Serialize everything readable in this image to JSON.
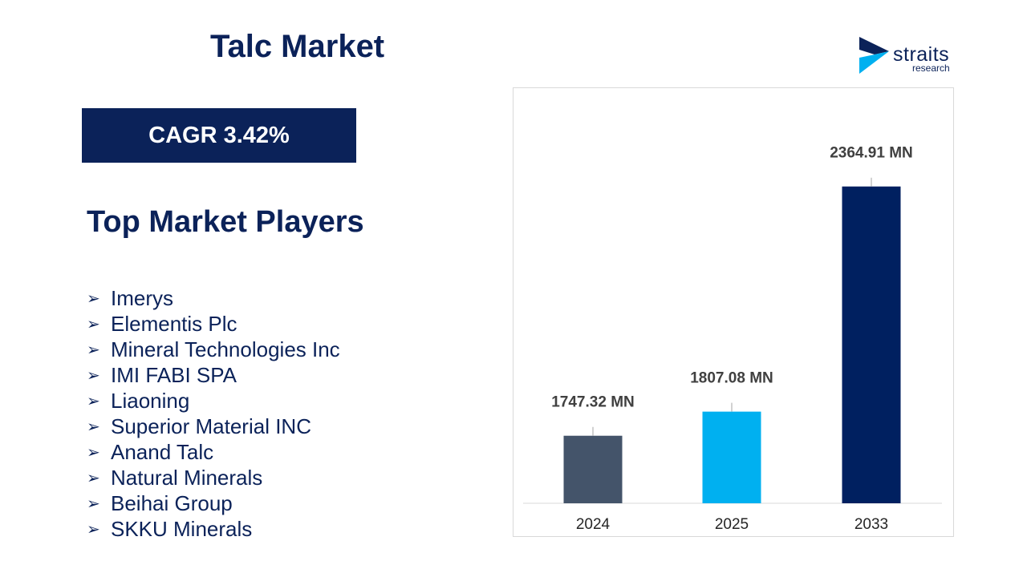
{
  "title": "Talc Market",
  "cagr": "CAGR 3.42%",
  "players_heading": "Top Market Players",
  "bullet_icon": "arrow-bullet-icon",
  "players": [
    "Imerys",
    "Elementis Plc",
    "Mineral Technologies Inc",
    "IMI FABI SPA",
    "Liaoning",
    "Superior Material INC",
    "Anand Talc",
    "Natural Minerals",
    "Beihai Group",
    "SKKU Minerals"
  ],
  "logo": {
    "name": "straits",
    "sub": "research",
    "icon": "straits-logo-icon"
  },
  "colors": {
    "navy": "#0b2259",
    "bar_2024": "#44546a",
    "bar_2025": "#00b0f0",
    "bar_2033": "#002060",
    "logo_accent": "#00b0f0"
  },
  "chart_data": {
    "type": "bar",
    "categories": [
      "2024",
      "2025",
      "2033"
    ],
    "values": [
      1747.32,
      1807.08,
      2364.91
    ],
    "value_labels": [
      "1747.32 MN",
      "1807.08 MN",
      "2364.91 MN"
    ],
    "bar_colors": [
      "#44546a",
      "#00b0f0",
      "#002060"
    ],
    "grid": false,
    "legend": "none"
  }
}
